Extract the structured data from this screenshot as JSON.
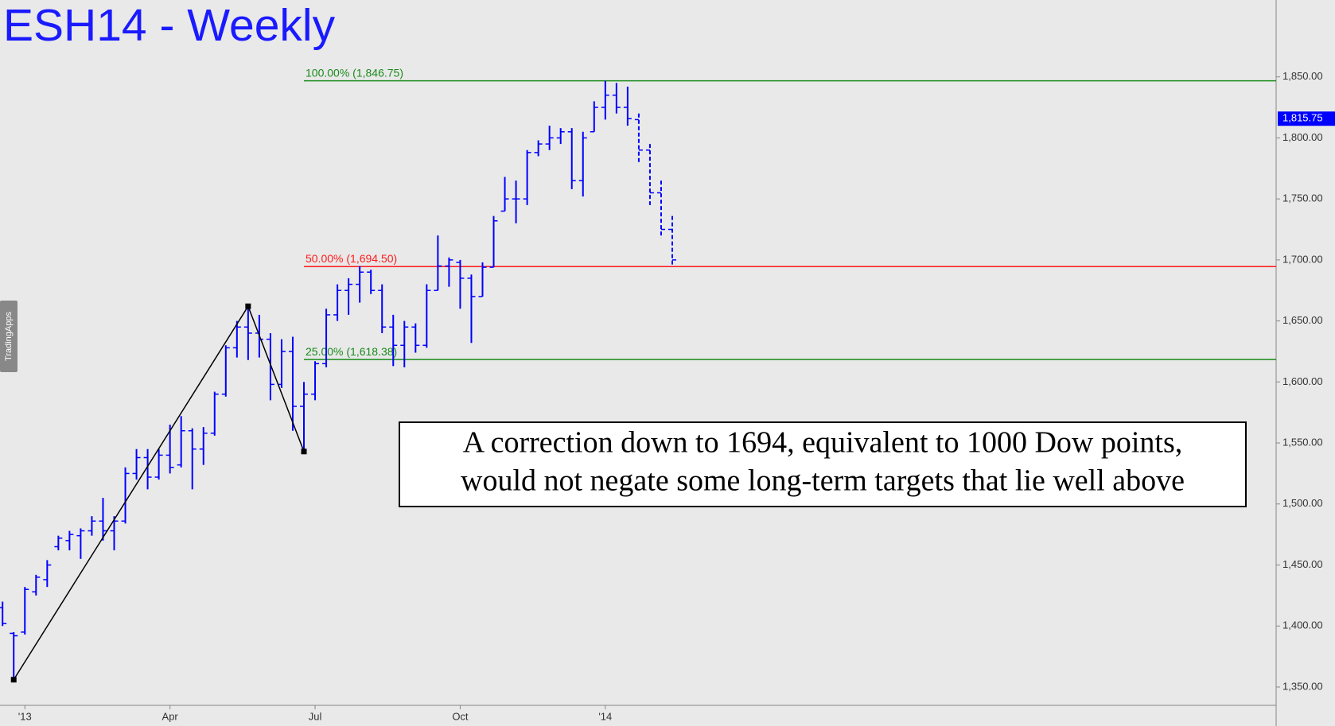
{
  "chart_data": {
    "type": "ohlc",
    "title": "ESH14 - Weekly",
    "badge": "TradingApps",
    "color": "#0000ff",
    "categories": [
      null,
      null,
      "'13",
      null,
      null,
      null,
      null,
      null,
      null,
      null,
      null,
      null,
      null,
      null,
      null,
      "Apr",
      null,
      null,
      null,
      null,
      null,
      null,
      null,
      null,
      null,
      null,
      null,
      null,
      "Jul",
      null,
      null,
      null,
      null,
      null,
      null,
      null,
      null,
      null,
      null,
      null,
      null,
      "Oct",
      null,
      null,
      null,
      null,
      null,
      null,
      null,
      null,
      null,
      null,
      null,
      null,
      "'14",
      null,
      null
    ],
    "open": [
      1415,
      1394,
      1395,
      1428,
      1438,
      1465,
      1470,
      1474,
      1478,
      1486,
      1478,
      1486,
      1525,
      1538,
      1522,
      1540,
      1532,
      1560,
      1545,
      1558,
      1590,
      1628,
      1645,
      1640,
      1635,
      1598,
      1625,
      1580,
      1590,
      1615,
      1655,
      1675,
      1680,
      1690,
      1675,
      1645,
      1630,
      1645,
      1630,
      1675,
      1695,
      1698,
      1685,
      1670,
      1694,
      1740,
      1750,
      1750,
      1788,
      1795,
      1800,
      1805,
      1765,
      1805,
      1825,
      1835,
      1825
    ],
    "high": [
      1420,
      1395,
      1432,
      1442,
      1454,
      1474,
      1478,
      1480,
      1490,
      1505,
      1490,
      1530,
      1545,
      1545,
      1545,
      1565,
      1572,
      1562,
      1563,
      1592,
      1630,
      1650,
      1661,
      1655,
      1640,
      1635,
      1637,
      1600,
      1617,
      1660,
      1680,
      1685,
      1695,
      1692,
      1680,
      1655,
      1650,
      1648,
      1680,
      1720,
      1702,
      1700,
      1688,
      1698,
      1736,
      1768,
      1765,
      1790,
      1798,
      1810,
      1808,
      1808,
      1805,
      1830,
      1846.75,
      1845,
      1842
    ],
    "low": [
      1400,
      1358,
      1393,
      1425,
      1432,
      1462,
      1462,
      1455,
      1474,
      1470,
      1462,
      1484,
      1520,
      1512,
      1520,
      1525,
      1530,
      1512,
      1532,
      1556,
      1588,
      1620,
      1618,
      1620,
      1585,
      1595,
      1560,
      1543,
      1585,
      1612,
      1650,
      1655,
      1665,
      1672,
      1640,
      1613,
      1612,
      1624,
      1628,
      1675,
      1678,
      1660,
      1632,
      1670,
      1694,
      1740,
      1730,
      1745,
      1785,
      1790,
      1795,
      1758,
      1752,
      1805,
      1815,
      1820,
      1810
    ],
    "close": [
      1402,
      1392,
      1430,
      1440,
      1450,
      1472,
      1475,
      1478,
      1486,
      1478,
      1486,
      1525,
      1538,
      1522,
      1540,
      1530,
      1560,
      1545,
      1558,
      1590,
      1628,
      1645,
      1640,
      1635,
      1598,
      1625,
      1580,
      1590,
      1615,
      1655,
      1675,
      1680,
      1690,
      1675,
      1645,
      1630,
      1645,
      1630,
      1675,
      1695,
      1700,
      1685,
      1670,
      1694,
      1732,
      1750,
      1750,
      1788,
      1795,
      1800,
      1805,
      1765,
      1800,
      1825,
      1835,
      1825,
      1815.75
    ],
    "projection": {
      "dashed": true,
      "open": [
        1815,
        1790,
        1755,
        1725
      ],
      "high": [
        1820,
        1795,
        1765,
        1736
      ],
      "low": [
        1780,
        1745,
        1718,
        1694.5
      ],
      "close": [
        1790,
        1755,
        1725,
        1700
      ]
    },
    "zigzag": {
      "color": "#000000",
      "index": [
        1,
        22,
        27
      ],
      "values": [
        1356,
        1662,
        1543
      ]
    },
    "levels": [
      {
        "value": 1846.75,
        "label": "100.00% (1,846.75)",
        "color": "#1a8a1a"
      },
      {
        "value": 1694.5,
        "label": "50.00% (1,694.50)",
        "color": "#ff1a1a"
      },
      {
        "value": 1618.38,
        "label": "25.00% (1,618.38)",
        "color": "#1a8a1a"
      }
    ],
    "last_price": {
      "value": 1815.75,
      "label": "1,815.75"
    },
    "annotation": [
      "A correction down to 1694, equivalent to 1000 Dow points,",
      "would not negate some long-term targets that lie well above"
    ],
    "ylim": [
      1335,
      1913
    ],
    "yticks": [
      {
        "value": 1350,
        "label": "1,350.00"
      },
      {
        "value": 1400,
        "label": "1,400.00"
      },
      {
        "value": 1450,
        "label": "1,450.00"
      },
      {
        "value": 1500,
        "label": "1,500.00"
      },
      {
        "value": 1550,
        "label": "1,550.00"
      },
      {
        "value": 1600,
        "label": "1,600.00"
      },
      {
        "value": 1650,
        "label": "1,650.00"
      },
      {
        "value": 1700,
        "label": "1,700.00"
      },
      {
        "value": 1750,
        "label": "1,750.00"
      },
      {
        "value": 1800,
        "label": "1,800.00"
      },
      {
        "value": 1850,
        "label": "1,850.00"
      }
    ]
  }
}
